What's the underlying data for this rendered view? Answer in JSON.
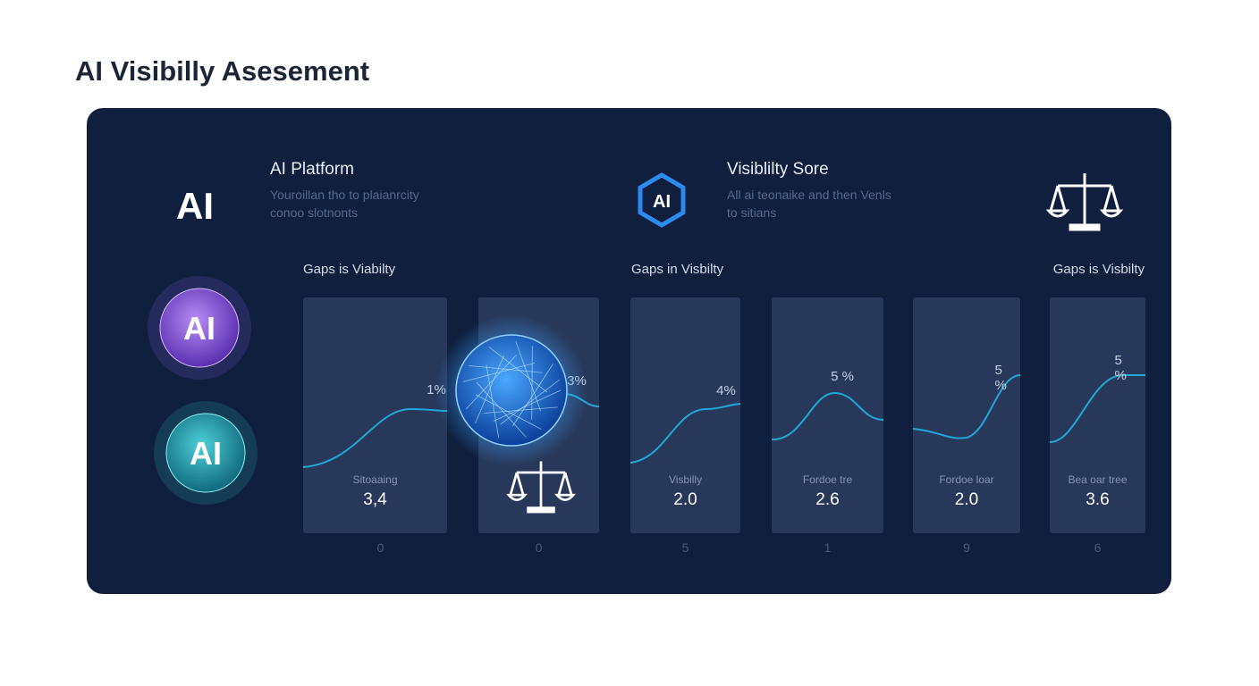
{
  "header": {
    "title": "AI Visibilly Asesement"
  },
  "panel": {
    "logo": "AI",
    "platform": {
      "title": "AI Platform",
      "description": [
        "Youroillan tho to plaianrcity",
        "conoo slotnonts"
      ]
    },
    "score": {
      "icon": "AI",
      "title": "Visiblilty Sore",
      "description": [
        "All ai teonaike and then Venls",
        "to sitians"
      ]
    },
    "orbs": [
      "AI",
      "AI"
    ],
    "sections": [
      "Gaps is Viabilty",
      "Gaps in Visbilty",
      "Gaps is Visbilty"
    ],
    "cards": [
      {
        "percent": "1%",
        "caption": "Sitoaaing",
        "value": "3,4",
        "footer": "0"
      },
      {
        "percent": "3%",
        "footer": "0"
      },
      {
        "percent": "4%",
        "caption": "Visbilly",
        "value": "2.0",
        "footer": "5"
      },
      {
        "percent": "5 %",
        "caption": "Fordoe tre",
        "value": "2.6",
        "footer": "1"
      },
      {
        "percent": "5 %",
        "caption": "Fordoe loar",
        "value": "2.0",
        "footer": "9"
      },
      {
        "percent": "5 %",
        "caption": "Bea oar tree",
        "value": "3.6",
        "footer": "6"
      }
    ]
  }
}
